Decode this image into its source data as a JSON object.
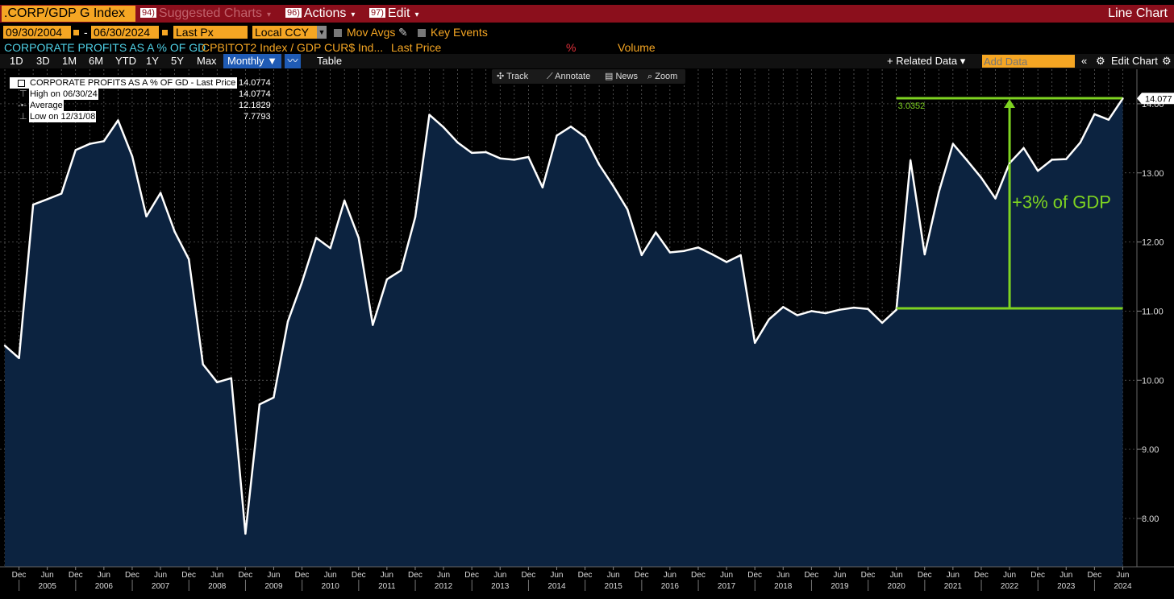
{
  "header": {
    "ticker": ".CORP/GDP G Index",
    "suggested": {
      "num": "94)",
      "label": "Suggested Charts"
    },
    "actions": {
      "num": "96)",
      "label": "Actions"
    },
    "edit": {
      "num": "97)",
      "label": "Edit"
    },
    "chart_kind": "Line Chart"
  },
  "controls": {
    "start_date": "09/30/2004",
    "date_sep": "-",
    "end_date": "06/30/2024",
    "field": "Last Px",
    "currency": "Local CCY",
    "mov_avgs": "Mov Avgs",
    "key_events": "Key Events"
  },
  "series_row": {
    "name": "CORPORATE PROFITS AS A % OF GD",
    "ratio": "CPBITOT2 Index / GDP CUR$ Ind...",
    "field": "Last Price",
    "pct": "%",
    "volume": "Volume"
  },
  "ranges": [
    "1D",
    "3D",
    "1M",
    "6M",
    "YTD",
    "1Y",
    "5Y",
    "Max"
  ],
  "period": "Monthly ▼",
  "table_label": "Table",
  "related_data": "+ Related Data ▾",
  "add_data_placeholder": "Add Data",
  "edit_chart": "Edit Chart",
  "toolbar": {
    "track": "Track",
    "annotate": "Annotate",
    "news": "News",
    "zoom": "Zoom"
  },
  "legend": [
    {
      "label": "CORPORATE PROFITS AS A % OF GD - Last Price",
      "value": "14.0774"
    },
    {
      "label": "High on 06/30/24",
      "value": "14.0774"
    },
    {
      "label": "Average",
      "value": "12.1829"
    },
    {
      "label": "Low on 12/31/08",
      "value": "7.7793"
    }
  ],
  "colors": {
    "area": "#0c2340",
    "line": "#ffffff",
    "annotation": "#7ed321",
    "accent": "#f5a623",
    "header": "#8b0f1c"
  },
  "chart_data": {
    "type": "area",
    "x": [
      "2004-09",
      "2004-12",
      "2005-03",
      "2005-06",
      "2005-09",
      "2005-12",
      "2006-03",
      "2006-06",
      "2006-09",
      "2006-12",
      "2007-03",
      "2007-06",
      "2007-09",
      "2007-12",
      "2008-03",
      "2008-06",
      "2008-09",
      "2008-12",
      "2009-03",
      "2009-06",
      "2009-09",
      "2009-12",
      "2010-03",
      "2010-06",
      "2010-09",
      "2010-12",
      "2011-03",
      "2011-06",
      "2011-09",
      "2011-12",
      "2012-03",
      "2012-06",
      "2012-09",
      "2012-12",
      "2013-03",
      "2013-06",
      "2013-09",
      "2013-12",
      "2014-03",
      "2014-06",
      "2014-09",
      "2014-12",
      "2015-03",
      "2015-06",
      "2015-09",
      "2015-12",
      "2016-03",
      "2016-06",
      "2016-09",
      "2016-12",
      "2017-03",
      "2017-06",
      "2017-09",
      "2017-12",
      "2018-03",
      "2018-06",
      "2018-09",
      "2018-12",
      "2019-03",
      "2019-06",
      "2019-09",
      "2019-12",
      "2020-03",
      "2020-06",
      "2020-09",
      "2020-12",
      "2021-03",
      "2021-06",
      "2021-09",
      "2021-12",
      "2022-03",
      "2022-06",
      "2022-09",
      "2022-12",
      "2023-03",
      "2023-06",
      "2023-09",
      "2023-12",
      "2024-03",
      "2024-06"
    ],
    "values": [
      10.5,
      10.32,
      12.54,
      12.62,
      12.7,
      13.33,
      13.42,
      13.46,
      13.76,
      13.24,
      12.37,
      12.71,
      12.15,
      11.75,
      10.23,
      9.97,
      10.03,
      7.7793,
      9.65,
      9.75,
      10.85,
      11.42,
      12.06,
      11.91,
      12.6,
      12.06,
      10.8,
      11.46,
      11.59,
      12.36,
      13.84,
      13.66,
      13.44,
      13.29,
      13.3,
      13.21,
      13.19,
      13.23,
      12.79,
      13.54,
      13.67,
      13.52,
      13.12,
      12.81,
      12.47,
      11.81,
      12.14,
      11.85,
      11.87,
      11.92,
      11.82,
      11.71,
      11.81,
      10.54,
      10.88,
      11.06,
      10.94,
      11.0,
      10.97,
      11.02,
      11.05,
      11.03,
      10.83,
      11.02,
      13.18,
      11.82,
      12.72,
      13.42,
      13.18,
      12.93,
      12.63,
      13.14,
      13.36,
      13.03,
      13.19,
      13.2,
      13.44,
      13.85,
      13.77,
      14.0774
    ],
    "ylim": [
      7.3,
      14.5
    ],
    "y_ticks": [
      "8.00",
      "9.00",
      "10.00",
      "11.00",
      "12.00",
      "13.00",
      "14.00"
    ],
    "x_month_ticks": [
      "Dec",
      "Jun",
      "Dec",
      "Jun",
      "Dec",
      "Jun",
      "Dec",
      "Jun",
      "Dec",
      "Jun",
      "Dec",
      "Jun",
      "Dec",
      "Jun",
      "Dec",
      "Jun",
      "Dec",
      "Jun",
      "Dec",
      "Jun",
      "Dec",
      "Jun",
      "Dec",
      "Jun",
      "Dec",
      "Jun",
      "Dec",
      "Jun",
      "Dec",
      "Jun",
      "Dec",
      "Jun",
      "Dec",
      "Jun",
      "Dec",
      "Jun",
      "Dec",
      "Jun",
      "Dec",
      "Jun"
    ],
    "x_year_labels": [
      "2005",
      "2006",
      "2007",
      "2008",
      "2009",
      "2010",
      "2011",
      "2012",
      "2013",
      "2014",
      "2015",
      "2016",
      "2017",
      "2018",
      "2019",
      "2020",
      "2021",
      "2022",
      "2023",
      "2024"
    ],
    "last_value_label": "14.077",
    "annotation": {
      "label": "+3% of GDP",
      "measure": "3.0352",
      "from_value": 11.04,
      "to_value": 14.08,
      "start_x": "2020-06",
      "arrow_x": "2022-06"
    }
  }
}
